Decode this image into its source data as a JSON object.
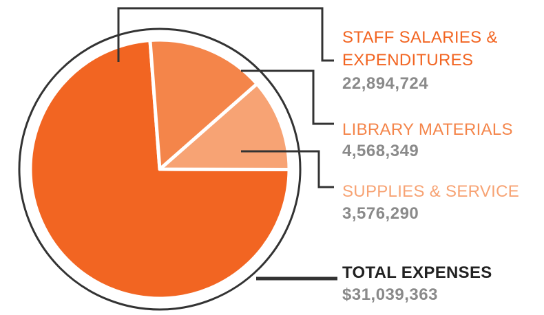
{
  "chart_data": {
    "type": "pie",
    "categories": [
      "STAFF SALARIES & EXPENDITURES",
      "LIBRARY MATERIALS",
      "SUPPLIES & SERVICE"
    ],
    "values": [
      22894724,
      4568349,
      3576290
    ],
    "value_labels": [
      "22,894,724",
      "4,568,349",
      "3,576,290"
    ],
    "colors": [
      "#f26522",
      "#f4854a",
      "#f7a374"
    ],
    "total": {
      "label": "TOTAL EXPENSES",
      "value": 31039363,
      "value_label": "$31,039,363"
    }
  }
}
